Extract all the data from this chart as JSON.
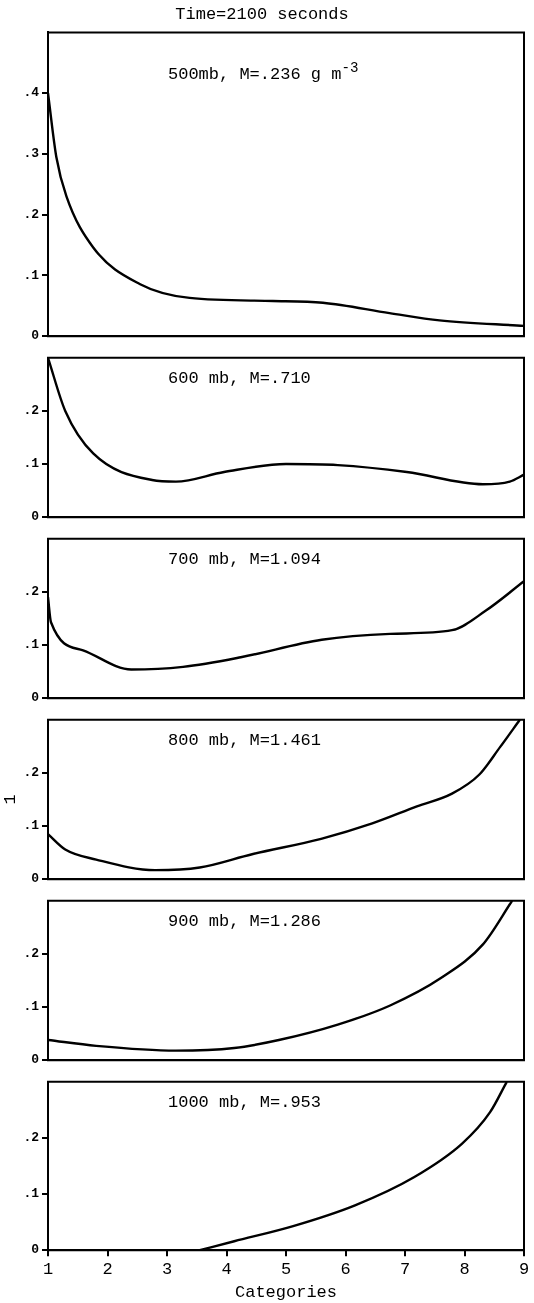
{
  "chart_data": [
    {
      "type": "line",
      "title": "Time=2100 seconds",
      "annotations": [
        "500mb, M=.236 g m$^{-3}$"
      ],
      "color": "#000000",
      "tick_labels": "y",
      "xlim": [
        1,
        9
      ],
      "xticks": [
        1,
        2,
        3,
        4,
        5,
        6,
        7,
        8,
        9
      ],
      "ylim": [
        0,
        0.5
      ],
      "yticks": [
        {
          "value": 0,
          "label": "0"
        },
        {
          "value": 0.1,
          "label": ".1"
        },
        {
          "value": 0.2,
          "label": ".2"
        },
        {
          "value": 0.3,
          "label": ".3"
        },
        {
          "value": 0.4,
          "label": ".4"
        }
      ],
      "x": [
        1,
        1.14,
        1.31,
        1.76,
        2.54,
        3.38,
        4.78,
        5.62,
        6.74,
        7.58,
        9
      ],
      "values": [
        0.4,
        0.295,
        0.23,
        0.146,
        0.086,
        0.063,
        0.058,
        0.055,
        0.038,
        0.026,
        0.017
      ]
    },
    {
      "type": "line",
      "annotations": [
        "600 mb, M=.710"
      ],
      "color": "#000000",
      "tick_labels": "y",
      "xlim": [
        1,
        9
      ],
      "xticks": [
        1,
        2,
        3,
        4,
        5,
        6,
        7,
        8,
        9
      ],
      "ylim": [
        0,
        0.3
      ],
      "yticks": [
        {
          "value": 0,
          "label": "0"
        },
        {
          "value": 0.1,
          "label": ".1"
        },
        {
          "value": 0.2,
          "label": ".2"
        }
      ],
      "x": [
        1,
        1.29,
        1.76,
        2.75,
        3.15,
        3.96,
        5,
        5.87,
        7.03,
        8.31,
        8.76,
        9
      ],
      "values": [
        0.3,
        0.2,
        0.12,
        0.07,
        0.067,
        0.085,
        0.1,
        0.098,
        0.085,
        0.062,
        0.067,
        0.08
      ]
    },
    {
      "type": "line",
      "annotations": [
        "700 mb, M=1.094"
      ],
      "color": "#000000",
      "tick_labels": "y",
      "xlim": [
        1,
        9
      ],
      "xticks": [
        1,
        2,
        3,
        4,
        5,
        6,
        7,
        8,
        9
      ],
      "ylim": [
        0,
        0.3
      ],
      "yticks": [
        {
          "value": 0,
          "label": "0"
        },
        {
          "value": 0.1,
          "label": ".1"
        },
        {
          "value": 0.2,
          "label": ".2"
        }
      ],
      "x": [
        1,
        1.05,
        1.59,
        2.4,
        3.27,
        4.24,
        5.6,
        6.75,
        7.79,
        8.36,
        9
      ],
      "values": [
        0.19,
        0.143,
        0.09,
        0.054,
        0.059,
        0.077,
        0.11,
        0.121,
        0.128,
        0.165,
        0.22
      ]
    },
    {
      "type": "line",
      "annotations": [
        "800 mb, M=1.461"
      ],
      "ylabel": "1",
      "color": "#000000",
      "tick_labels": "y",
      "xlim": [
        1,
        9
      ],
      "xticks": [
        1,
        2,
        3,
        4,
        5,
        6,
        7,
        8,
        9
      ],
      "ylim": [
        0,
        0.3
      ],
      "yticks": [
        {
          "value": 0,
          "label": "0"
        },
        {
          "value": 0.1,
          "label": ".1"
        },
        {
          "value": 0.2,
          "label": ".2"
        }
      ],
      "x": [
        1,
        1.29,
        1.81,
        2.8,
        3.55,
        4.43,
        5.59,
        6.45,
        7.2,
        7.79,
        8.25,
        8.6,
        8.93
      ],
      "values": [
        0.085,
        0.056,
        0.037,
        0.017,
        0.022,
        0.047,
        0.076,
        0.105,
        0.137,
        0.161,
        0.197,
        0.249,
        0.3
      ]
    },
    {
      "type": "line",
      "annotations": [
        "900 mb, M=1.286"
      ],
      "color": "#000000",
      "tick_labels": "y",
      "xlim": [
        1,
        9
      ],
      "xticks": [
        1,
        2,
        3,
        4,
        5,
        6,
        7,
        8,
        9
      ],
      "ylim": [
        0,
        0.3
      ],
      "yticks": [
        {
          "value": 0,
          "label": "0"
        },
        {
          "value": 0.1,
          "label": ".1"
        },
        {
          "value": 0.2,
          "label": ".2"
        }
      ],
      "x": [
        1,
        1.81,
        3.15,
        4.13,
        4.88,
        5.87,
        6.75,
        7.61,
        8.31,
        8.8
      ],
      "values": [
        0.038,
        0.027,
        0.018,
        0.023,
        0.038,
        0.067,
        0.103,
        0.155,
        0.218,
        0.3
      ]
    },
    {
      "type": "line",
      "annotations": [
        "1000 mb, M=.953"
      ],
      "xlabel": "Categories",
      "color": "#000000",
      "xlim": [
        1,
        9
      ],
      "xticks": [
        1,
        2,
        3,
        4,
        5,
        6,
        7,
        8,
        9
      ],
      "ylim": [
        0,
        0.3
      ],
      "yticks": [
        {
          "value": 0,
          "label": "0"
        },
        {
          "value": 0.1,
          "label": ".1"
        },
        {
          "value": 0.2,
          "label": ".2"
        }
      ],
      "x": [
        3.55,
        4.13,
        5.12,
        6.16,
        7.15,
        7.96,
        8.43,
        8.71
      ],
      "values": [
        0,
        0.016,
        0.043,
        0.08,
        0.13,
        0.19,
        0.246,
        0.3
      ]
    }
  ]
}
